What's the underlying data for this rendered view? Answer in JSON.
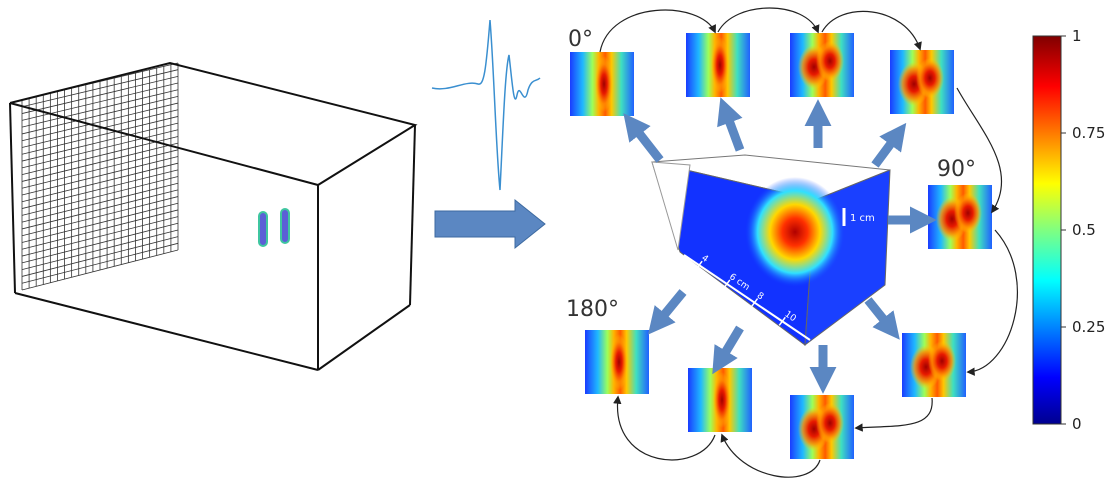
{
  "angles": {
    "a0": "0°",
    "a90": "90°",
    "a180": "180°"
  },
  "volume": {
    "height_scale": "1 cm",
    "length_scale": [
      "4",
      "6 cm",
      "8",
      "10"
    ]
  },
  "colorbar": {
    "ticks": [
      "1",
      "0.75",
      "0.5",
      "0.25",
      "0"
    ]
  }
}
